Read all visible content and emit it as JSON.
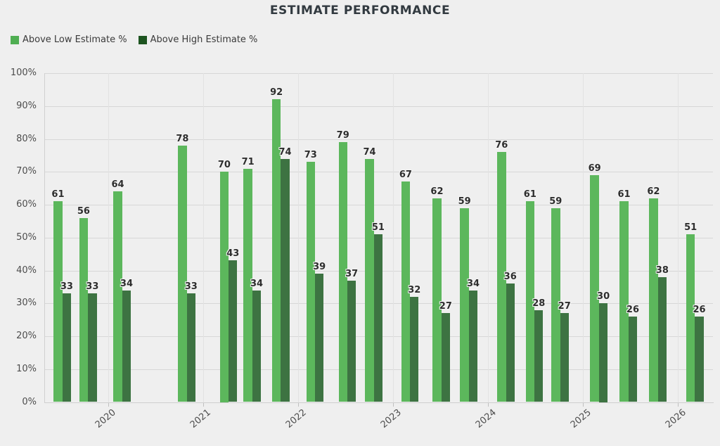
{
  "title": "ESTIMATE PERFORMANCE",
  "legend": [
    {
      "label": "Above Low Estimate %",
      "color": "#4fae52"
    },
    {
      "label": "Above High Estimate %",
      "color": "#1d5420"
    }
  ],
  "colors": {
    "background": "#efefef",
    "low_bar": "#5cb75c",
    "high_bar": "#3d7342"
  },
  "chart_data": {
    "type": "bar",
    "title": "ESTIMATE PERFORMANCE",
    "grid": true,
    "legend_position": "top-left",
    "x_axis": {
      "type": "time-years",
      "min": 2019.33,
      "max": 2026.37,
      "tick_values": [
        2020,
        2021,
        2022,
        2023,
        2024,
        2025,
        2026
      ],
      "tick_labels": [
        "2020",
        "2021",
        "2022",
        "2023",
        "2024",
        "2025",
        "2026"
      ]
    },
    "y_axis": {
      "min": 0,
      "max": 100,
      "step": 10,
      "tick_labels": [
        "0%",
        "10%",
        "20%",
        "30%",
        "40%",
        "50%",
        "60%",
        "70%",
        "80%",
        "90%",
        "100%"
      ],
      "format": "percent"
    },
    "x": [
      2019.52,
      2019.79,
      2020.15,
      2020.83,
      2021.27,
      2021.52,
      2021.82,
      2022.18,
      2022.52,
      2022.8,
      2023.18,
      2023.51,
      2023.8,
      2024.19,
      2024.49,
      2024.76,
      2025.17,
      2025.48,
      2025.79,
      2026.18
    ],
    "series": [
      {
        "name": "Above Low Estimate %",
        "color": "#5cb75c",
        "values": [
          61,
          56,
          64,
          78,
          70,
          71,
          92,
          73,
          79,
          74,
          67,
          62,
          59,
          76,
          61,
          59,
          69,
          61,
          62,
          51
        ]
      },
      {
        "name": "Above High Estimate %",
        "color": "#3d7342",
        "values": [
          33,
          33,
          34,
          33,
          43,
          34,
          74,
          39,
          37,
          51,
          32,
          27,
          34,
          36,
          28,
          27,
          30,
          26,
          38,
          26
        ]
      }
    ],
    "value_labels": true
  }
}
